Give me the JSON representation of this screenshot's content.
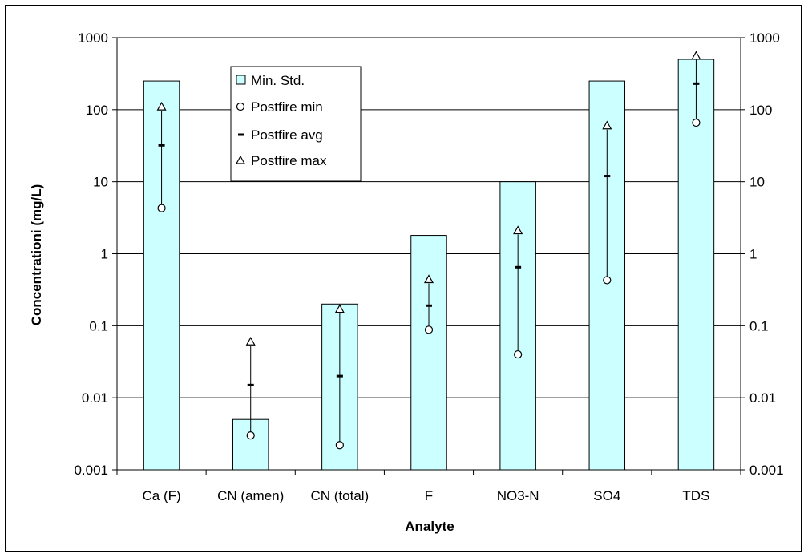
{
  "chart_data": {
    "type": "bar",
    "categories": [
      "Ca (F)",
      "CN (amen)",
      "CN (total)",
      "F",
      "NO3-N",
      "SO4",
      "TDS"
    ],
    "xlabel": "Analyte",
    "ylabel": "Concentrationi (mg/L)",
    "yscale": "log",
    "ylim": [
      0.001,
      1000
    ],
    "yticks": [
      {
        "value": 1000,
        "label": "1000"
      },
      {
        "value": 100,
        "label": "100"
      },
      {
        "value": 10,
        "label": "10"
      },
      {
        "value": 1,
        "label": "1"
      },
      {
        "value": 0.1,
        "label": "0.1"
      },
      {
        "value": 0.01,
        "label": "0.01"
      },
      {
        "value": 0.001,
        "label": "0.001"
      }
    ],
    "grid": true,
    "secondary_y_axis": true,
    "legend_position": "upper-left-inside",
    "series": [
      {
        "name": "Min. Std.",
        "kind": "bar",
        "values": [
          250,
          0.005,
          0.2,
          1.8,
          10,
          250,
          500
        ]
      },
      {
        "name": "Postfire min",
        "kind": "marker-circle",
        "values": [
          4.3,
          0.003,
          0.0022,
          0.088,
          0.04,
          0.43,
          66
        ]
      },
      {
        "name": "Postfire avg",
        "kind": "marker-dash",
        "values": [
          32,
          0.015,
          0.02,
          0.19,
          0.65,
          12,
          230
        ]
      },
      {
        "name": "Postfire max",
        "kind": "marker-triangle",
        "values": [
          110,
          0.06,
          0.17,
          0.44,
          2.1,
          60,
          560
        ]
      }
    ],
    "colors": {
      "bar_fill": "#ccffff",
      "bar_stroke": "#000000",
      "marker": "#000000"
    }
  }
}
